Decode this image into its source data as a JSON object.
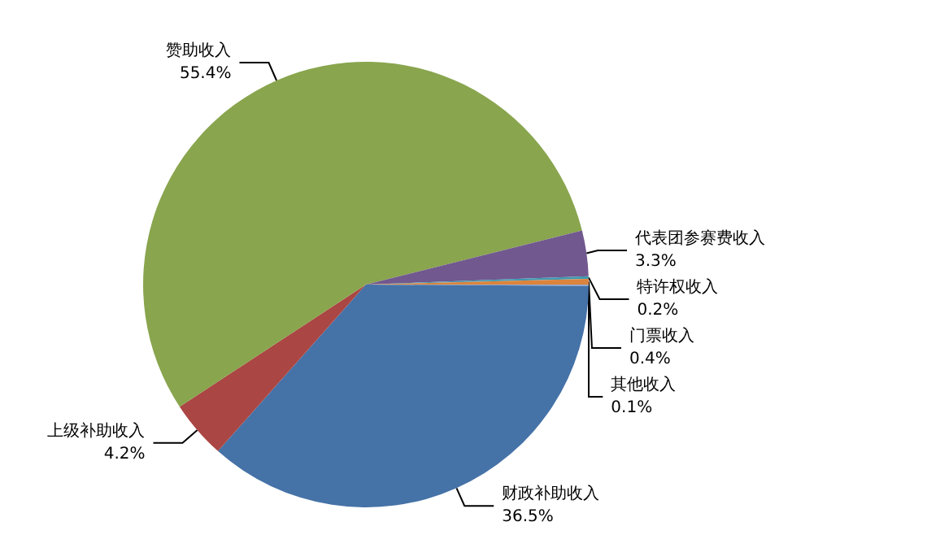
{
  "chart_data": {
    "type": "pie",
    "categories": [
      "其他收入",
      "财政补助收入",
      "上级补助收入",
      "赞助收入",
      "代表团参赛费收入",
      "特许权收入",
      "门票收入"
    ],
    "values": [
      0.1,
      36.5,
      4.2,
      55.4,
      3.3,
      0.2,
      0.4
    ],
    "colors": [
      "#93a9cf",
      "#4572a7",
      "#aa4643",
      "#89a54e",
      "#71588f",
      "#4198af",
      "#db843d"
    ],
    "value_labels": [
      "0.1%",
      "36.5%",
      "4.2%",
      "55.4%",
      "3.3%",
      "0.2%",
      "0.4%"
    ],
    "legend": false
  }
}
